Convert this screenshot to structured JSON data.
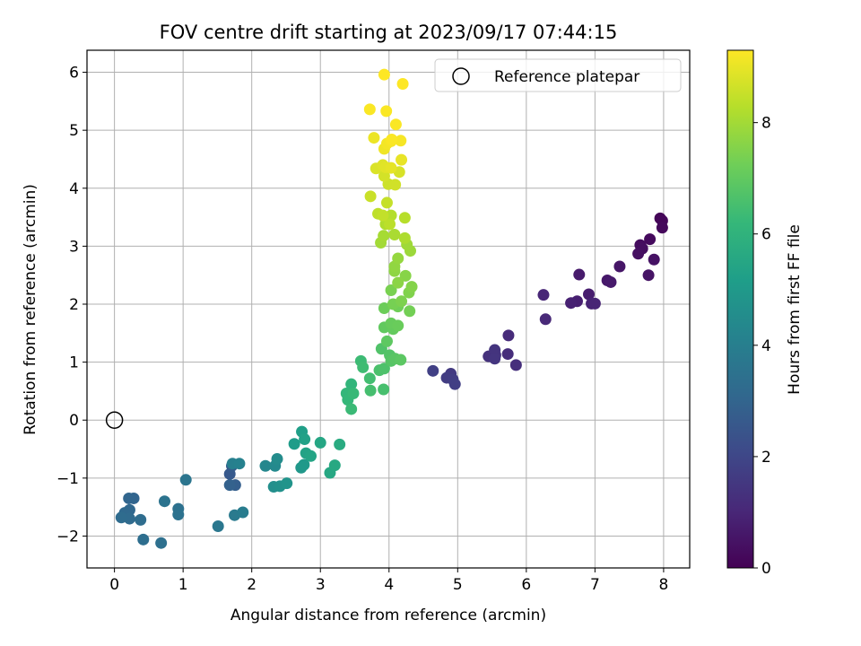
{
  "chart_data": {
    "type": "scatter",
    "title": "FOV centre drift starting at 2023/09/17 07:44:15",
    "xlabel": "Angular distance from reference (arcmin)",
    "ylabel": "Rotation from reference (arcmin)",
    "xlim": [
      -0.4,
      8.38
    ],
    "ylim": [
      -2.55,
      6.38
    ],
    "xticks": [
      0,
      1,
      2,
      3,
      4,
      5,
      6,
      7,
      8
    ],
    "yticks": [
      -2,
      -1,
      0,
      1,
      2,
      3,
      4,
      5,
      6
    ],
    "xtick_labels": [
      "0",
      "1",
      "2",
      "3",
      "4",
      "5",
      "6",
      "7",
      "8"
    ],
    "ytick_labels": [
      "−2",
      "−1",
      "0",
      "1",
      "2",
      "3",
      "4",
      "5",
      "6"
    ],
    "grid": true,
    "legend_position": "top-right",
    "reference_point": {
      "label": "Reference platepar",
      "x": 0,
      "y": 0
    },
    "colorbar": {
      "label": "Hours from first FF file",
      "min": 0,
      "max": 9.3,
      "ticks": [
        0,
        2,
        4,
        6,
        8
      ],
      "tick_labels": [
        "0",
        "2",
        "4",
        "6",
        "8"
      ],
      "colormap": "viridis"
    },
    "colormap_stops": [
      "#440154",
      "#482878",
      "#3e4989",
      "#31688e",
      "#26828e",
      "#1f9e89",
      "#35b779",
      "#6ece58",
      "#b5de2b",
      "#fde725"
    ],
    "point_color_stroke": "none",
    "series": [
      {
        "points": [
          [
            7.95,
            3.48,
            0.1
          ],
          [
            7.98,
            3.44,
            0.15
          ],
          [
            7.98,
            3.32,
            0.2
          ],
          [
            7.8,
            3.12,
            0.25
          ],
          [
            7.66,
            3.02,
            0.3
          ],
          [
            7.69,
            2.96,
            0.35
          ],
          [
            7.63,
            2.87,
            0.4
          ],
          [
            7.86,
            2.77,
            0.45
          ],
          [
            7.78,
            2.5,
            0.5
          ],
          [
            7.36,
            2.65,
            0.55
          ],
          [
            7.18,
            2.41,
            0.6
          ],
          [
            7.23,
            2.38,
            0.65
          ],
          [
            6.77,
            2.51,
            0.7
          ],
          [
            6.91,
            2.17,
            0.75
          ],
          [
            6.74,
            2.05,
            0.8
          ],
          [
            6.65,
            2.02,
            0.85
          ],
          [
            6.95,
            2.01,
            0.9
          ],
          [
            7.0,
            2.01,
            0.95
          ],
          [
            6.25,
            2.16,
            1.0
          ],
          [
            6.28,
            1.74,
            1.05
          ],
          [
            5.74,
            1.46,
            1.15
          ],
          [
            5.73,
            1.14,
            1.2
          ],
          [
            5.85,
            0.95,
            1.25
          ],
          [
            5.45,
            1.1,
            1.3
          ],
          [
            5.55,
            1.12,
            1.35
          ],
          [
            5.54,
            1.21,
            1.4
          ],
          [
            5.54,
            1.06,
            1.45
          ],
          [
            4.9,
            0.8,
            1.6
          ],
          [
            4.84,
            0.73,
            1.65
          ],
          [
            4.93,
            0.7,
            1.7
          ],
          [
            4.96,
            0.62,
            1.75
          ],
          [
            4.64,
            0.85,
            1.8
          ],
          [
            1.68,
            -0.93,
            2.6
          ],
          [
            1.71,
            -0.79,
            2.7
          ],
          [
            1.76,
            -1.12,
            2.8
          ],
          [
            1.68,
            -1.12,
            2.9
          ],
          [
            0.28,
            -1.35,
            3.0
          ],
          [
            0.21,
            -1.35,
            3.05
          ],
          [
            0.22,
            -1.55,
            3.1
          ],
          [
            0.15,
            -1.6,
            3.15
          ],
          [
            0.22,
            -1.7,
            3.2
          ],
          [
            0.1,
            -1.68,
            3.25
          ],
          [
            0.38,
            -1.72,
            3.3
          ],
          [
            0.42,
            -2.06,
            3.35
          ],
          [
            0.68,
            -2.12,
            3.4
          ],
          [
            0.93,
            -1.53,
            3.45
          ],
          [
            0.93,
            -1.63,
            3.5
          ],
          [
            0.73,
            -1.4,
            3.55
          ],
          [
            1.04,
            -1.03,
            3.6
          ],
          [
            1.51,
            -1.83,
            3.7
          ],
          [
            1.75,
            -1.64,
            3.8
          ],
          [
            1.87,
            -1.59,
            3.9
          ],
          [
            1.72,
            -0.75,
            4.0
          ],
          [
            1.82,
            -0.75,
            4.1
          ],
          [
            2.2,
            -0.79,
            4.3
          ],
          [
            2.34,
            -0.79,
            4.4
          ],
          [
            2.37,
            -0.67,
            4.5
          ],
          [
            2.32,
            -1.15,
            4.6
          ],
          [
            2.41,
            -1.14,
            4.7
          ],
          [
            2.51,
            -1.09,
            4.8
          ],
          [
            2.72,
            -0.82,
            4.9
          ],
          [
            2.76,
            -0.77,
            5.0
          ],
          [
            2.62,
            -0.41,
            5.1
          ],
          [
            2.73,
            -0.2,
            5.2
          ],
          [
            2.77,
            -0.33,
            5.3
          ],
          [
            2.79,
            -0.57,
            5.35
          ],
          [
            2.86,
            -0.62,
            5.4
          ],
          [
            3.0,
            -0.39,
            5.5
          ],
          [
            3.14,
            -0.91,
            5.55
          ],
          [
            3.21,
            -0.78,
            5.6
          ],
          [
            3.28,
            -0.42,
            5.7
          ],
          [
            3.45,
            0.62,
            6.1
          ],
          [
            3.38,
            0.46,
            6.15
          ],
          [
            3.4,
            0.35,
            6.2
          ],
          [
            3.48,
            0.46,
            6.25
          ],
          [
            3.45,
            0.19,
            6.3
          ],
          [
            3.59,
            1.02,
            6.35
          ],
          [
            3.62,
            0.91,
            6.4
          ],
          [
            3.72,
            0.72,
            6.45
          ],
          [
            3.73,
            0.51,
            6.5
          ],
          [
            3.92,
            0.53,
            6.55
          ],
          [
            3.86,
            0.86,
            6.6
          ],
          [
            3.93,
            0.89,
            6.65
          ],
          [
            3.89,
            1.23,
            6.7
          ],
          [
            4.01,
            1.12,
            6.75
          ],
          [
            4.03,
            1.02,
            6.8
          ],
          [
            4.09,
            1.06,
            6.85
          ],
          [
            4.17,
            1.04,
            6.9
          ],
          [
            3.97,
            1.36,
            6.95
          ],
          [
            3.93,
            1.6,
            7.0
          ],
          [
            4.06,
            1.57,
            7.05
          ],
          [
            4.03,
            1.67,
            7.1
          ],
          [
            4.13,
            1.63,
            7.15
          ],
          [
            3.93,
            1.93,
            7.2
          ],
          [
            4.13,
            1.96,
            7.25
          ],
          [
            4.3,
            1.88,
            7.3
          ],
          [
            4.06,
            2.0,
            7.35
          ],
          [
            4.03,
            2.24,
            7.4
          ],
          [
            4.18,
            2.05,
            7.45
          ],
          [
            4.29,
            2.2,
            7.5
          ],
          [
            4.33,
            2.3,
            7.55
          ],
          [
            4.24,
            2.49,
            7.6
          ],
          [
            4.13,
            2.37,
            7.65
          ],
          [
            4.08,
            2.57,
            7.7
          ],
          [
            4.08,
            2.65,
            7.75
          ],
          [
            4.13,
            2.79,
            7.8
          ],
          [
            4.31,
            2.92,
            7.9
          ],
          [
            4.26,
            3.03,
            7.95
          ],
          [
            3.88,
            3.06,
            8.0
          ],
          [
            3.92,
            3.18,
            8.05
          ],
          [
            4.08,
            3.2,
            8.1
          ],
          [
            4.23,
            3.14,
            8.15
          ],
          [
            3.95,
            3.38,
            8.2
          ],
          [
            4.03,
            3.53,
            8.25
          ],
          [
            4.23,
            3.49,
            8.3
          ],
          [
            4.01,
            3.38,
            8.35
          ],
          [
            3.84,
            3.56,
            8.4
          ],
          [
            3.91,
            3.53,
            8.45
          ],
          [
            3.97,
            3.75,
            8.5
          ],
          [
            3.73,
            3.86,
            8.55
          ],
          [
            3.99,
            4.07,
            8.6
          ],
          [
            4.09,
            4.06,
            8.65
          ],
          [
            3.93,
            4.21,
            8.7
          ],
          [
            4.15,
            4.28,
            8.75
          ],
          [
            3.81,
            4.34,
            8.8
          ],
          [
            3.91,
            4.4,
            8.85
          ],
          [
            3.95,
            4.36,
            8.9
          ],
          [
            4.03,
            4.35,
            8.95
          ],
          [
            4.18,
            4.49,
            9.0
          ],
          [
            3.78,
            4.87,
            9.05
          ],
          [
            3.93,
            4.68,
            9.1
          ],
          [
            3.97,
            4.77,
            9.15
          ],
          [
            4.03,
            4.81,
            9.2
          ],
          [
            4.17,
            4.82,
            9.2
          ],
          [
            4.04,
            4.84,
            9.25
          ],
          [
            3.72,
            5.36,
            9.25
          ],
          [
            3.96,
            5.33,
            9.25
          ],
          [
            4.1,
            5.1,
            9.25
          ],
          [
            3.93,
            5.96,
            9.3
          ],
          [
            4.2,
            5.8,
            9.3
          ]
        ]
      }
    ]
  }
}
